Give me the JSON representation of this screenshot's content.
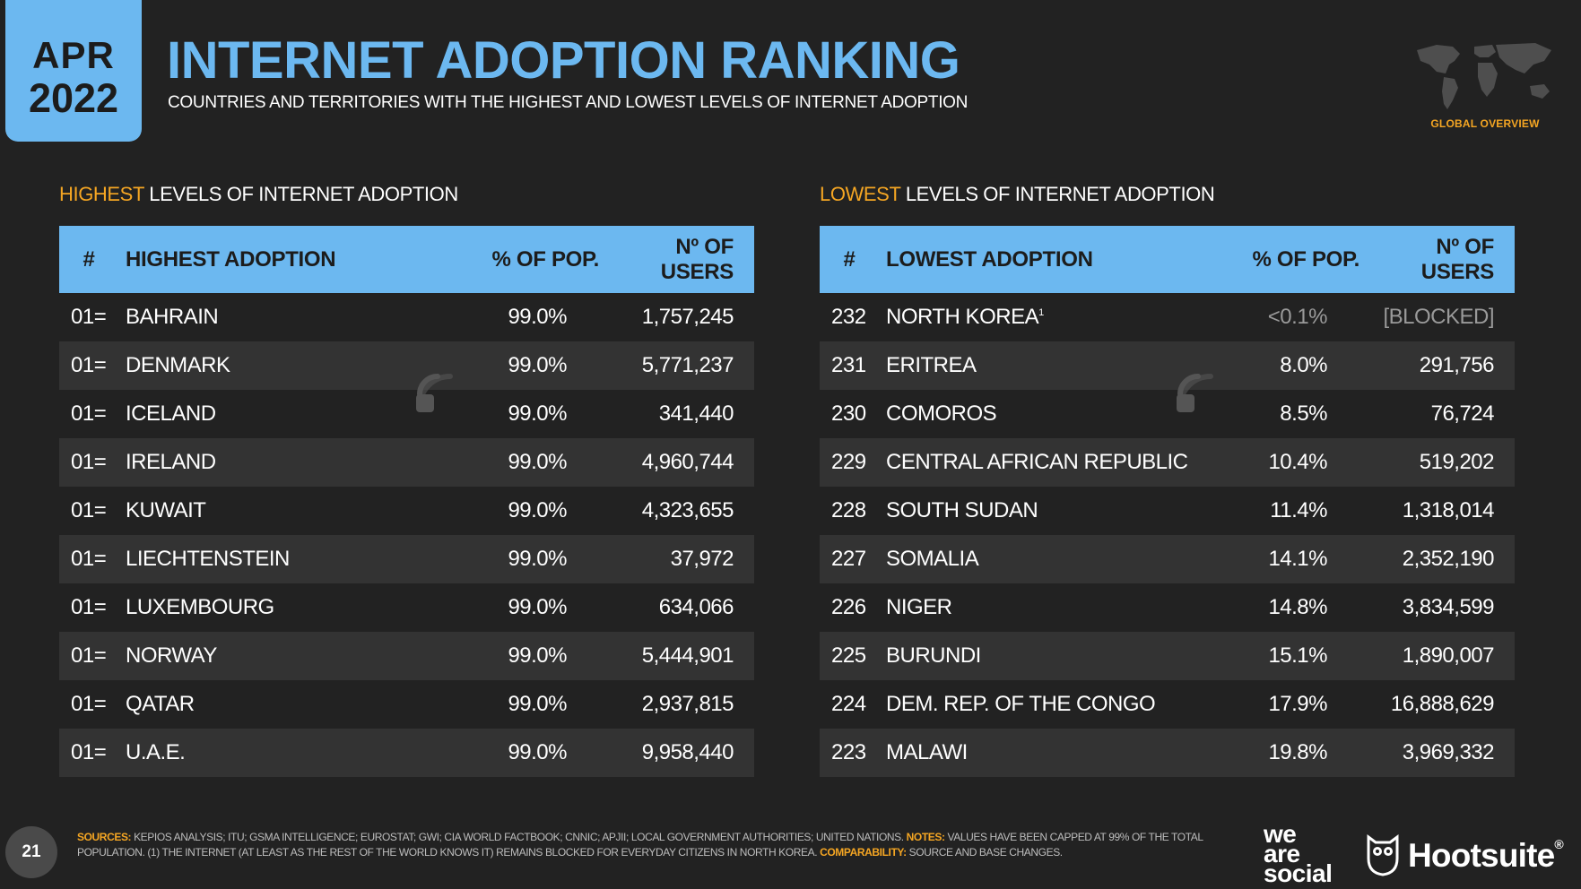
{
  "header": {
    "month": "APR",
    "year": "2022",
    "title": "INTERNET ADOPTION RANKING",
    "subtitle": "COUNTRIES AND TERRITORIES WITH THE HIGHEST AND LOWEST LEVELS OF INTERNET ADOPTION",
    "badge_label": "GLOBAL OVERVIEW"
  },
  "colors": {
    "accent_blue": "#6cb8f0",
    "accent_orange": "#f5a623",
    "background": "#222222"
  },
  "highest": {
    "section_highlight": "HIGHEST",
    "section_rest": " LEVELS OF INTERNET ADOPTION",
    "headers": {
      "rank": "#",
      "name": "HIGHEST ADOPTION",
      "pct": "% OF POP.",
      "users": "Nº OF USERS"
    },
    "rows": [
      {
        "rank": "01=",
        "name": "BAHRAIN",
        "pct": "99.0%",
        "users": "1,757,245"
      },
      {
        "rank": "01=",
        "name": "DENMARK",
        "pct": "99.0%",
        "users": "5,771,237"
      },
      {
        "rank": "01=",
        "name": "ICELAND",
        "pct": "99.0%",
        "users": "341,440"
      },
      {
        "rank": "01=",
        "name": "IRELAND",
        "pct": "99.0%",
        "users": "4,960,744"
      },
      {
        "rank": "01=",
        "name": "KUWAIT",
        "pct": "99.0%",
        "users": "4,323,655"
      },
      {
        "rank": "01=",
        "name": "LIECHTENSTEIN",
        "pct": "99.0%",
        "users": "37,972"
      },
      {
        "rank": "01=",
        "name": "LUXEMBOURG",
        "pct": "99.0%",
        "users": "634,066"
      },
      {
        "rank": "01=",
        "name": "NORWAY",
        "pct": "99.0%",
        "users": "5,444,901"
      },
      {
        "rank": "01=",
        "name": "QATAR",
        "pct": "99.0%",
        "users": "2,937,815"
      },
      {
        "rank": "01=",
        "name": "U.A.E.",
        "pct": "99.0%",
        "users": "9,958,440"
      }
    ]
  },
  "lowest": {
    "section_highlight": "LOWEST",
    "section_rest": " LEVELS OF INTERNET ADOPTION",
    "headers": {
      "rank": "#",
      "name": "LOWEST ADOPTION",
      "pct": "% OF POP.",
      "users": "Nº OF USERS"
    },
    "rows": [
      {
        "rank": "232",
        "name": "NORTH KOREA",
        "sup": "1",
        "pct": "<0.1%",
        "users": "[BLOCKED]",
        "muted": true
      },
      {
        "rank": "231",
        "name": "ERITREA",
        "pct": "8.0%",
        "users": "291,756"
      },
      {
        "rank": "230",
        "name": "COMOROS",
        "pct": "8.5%",
        "users": "76,724"
      },
      {
        "rank": "229",
        "name": "CENTRAL AFRICAN REPUBLIC",
        "pct": "10.4%",
        "users": "519,202"
      },
      {
        "rank": "228",
        "name": "SOUTH SUDAN",
        "pct": "11.4%",
        "users": "1,318,014"
      },
      {
        "rank": "227",
        "name": "SOMALIA",
        "pct": "14.1%",
        "users": "2,352,190"
      },
      {
        "rank": "226",
        "name": "NIGER",
        "pct": "14.8%",
        "users": "3,834,599"
      },
      {
        "rank": "225",
        "name": "BURUNDI",
        "pct": "15.1%",
        "users": "1,890,007"
      },
      {
        "rank": "224",
        "name": "DEM. REP. OF THE CONGO",
        "pct": "17.9%",
        "users": "16,888,629"
      },
      {
        "rank": "223",
        "name": "MALAWI",
        "pct": "19.8%",
        "users": "3,969,332"
      }
    ]
  },
  "footer": {
    "page_number": "21",
    "sources_label": "SOURCES:",
    "sources_text": " KEPIOS ANALYSIS; ITU; GSMA INTELLIGENCE; EUROSTAT; GWI; CIA WORLD FACTBOOK; CNNIC; APJII; LOCAL GOVERNMENT AUTHORITIES; UNITED NATIONS. ",
    "notes_label": "NOTES:",
    "notes_text": " VALUES HAVE BEEN CAPPED AT 99% OF THE TOTAL POPULATION. (1) THE INTERNET (AT LEAST AS THE REST OF THE WORLD KNOWS IT) REMAINS BLOCKED FOR EVERYDAY CITIZENS IN NORTH KOREA. ",
    "comparability_label": "COMPARABILITY:",
    "comparability_text": " SOURCE AND BASE CHANGES.",
    "brand_was_1": "we",
    "brand_was_2": "are",
    "brand_was_3": "social",
    "brand_hootsuite": "Hootsuite",
    "brand_hootsuite_mark": "®"
  }
}
